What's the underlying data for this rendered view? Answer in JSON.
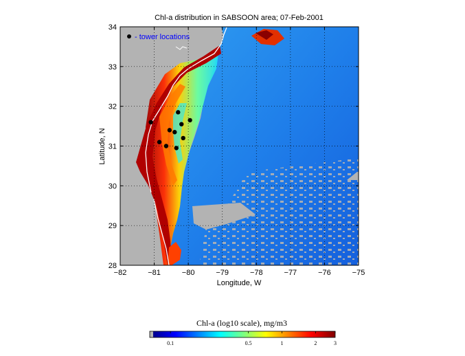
{
  "title": "Chl-a distribution in SABSOON area; 07-Feb-2001",
  "legend_label": "- tower locations",
  "x_axis": {
    "label": "Longitude, W",
    "ticks": [
      {
        "value": -82,
        "label": "−82"
      },
      {
        "value": -81,
        "label": "−81"
      },
      {
        "value": -80,
        "label": "−80"
      },
      {
        "value": -79,
        "label": "−79"
      },
      {
        "value": -78,
        "label": "−78"
      },
      {
        "value": -77,
        "label": "−77"
      },
      {
        "value": -76,
        "label": "−76"
      },
      {
        "value": -75,
        "label": "−75"
      }
    ],
    "range": [
      -82,
      -75
    ]
  },
  "y_axis": {
    "label": "Latitude, N",
    "ticks": [
      {
        "value": 28,
        "label": "28"
      },
      {
        "value": 29,
        "label": "29"
      },
      {
        "value": 30,
        "label": "30"
      },
      {
        "value": 31,
        "label": "31"
      },
      {
        "value": 32,
        "label": "32"
      },
      {
        "value": 33,
        "label": "33"
      },
      {
        "value": 34,
        "label": "34"
      }
    ],
    "range": [
      28,
      34
    ]
  },
  "grid": "dotted",
  "colorbar": {
    "title": "Chl-a (log10 scale), mg/m3",
    "ticks": [
      {
        "value": 0.1,
        "label": "0.1"
      },
      {
        "value": 0.5,
        "label": "0.5"
      },
      {
        "value": 1,
        "label": "1"
      },
      {
        "value": 2,
        "label": "2"
      },
      {
        "value": 3,
        "label": "3"
      }
    ],
    "colormap": "jet",
    "land_color": "#b3b3b3"
  },
  "colors": {
    "land": "#b3b3b3",
    "title_blue": "#0000ff",
    "marker": "#000000"
  },
  "tower_locations": [
    {
      "lon": -81.1,
      "lat": 31.6
    },
    {
      "lon": -80.85,
      "lat": 31.1
    },
    {
      "lon": -80.65,
      "lat": 31.0
    },
    {
      "lon": -80.55,
      "lat": 31.4
    },
    {
      "lon": -80.4,
      "lat": 31.35
    },
    {
      "lon": -80.3,
      "lat": 31.85
    },
    {
      "lon": -80.2,
      "lat": 31.55
    },
    {
      "lon": -80.15,
      "lat": 31.2
    },
    {
      "lon": -80.35,
      "lat": 30.95
    },
    {
      "lon": -79.95,
      "lat": 31.65
    }
  ]
}
